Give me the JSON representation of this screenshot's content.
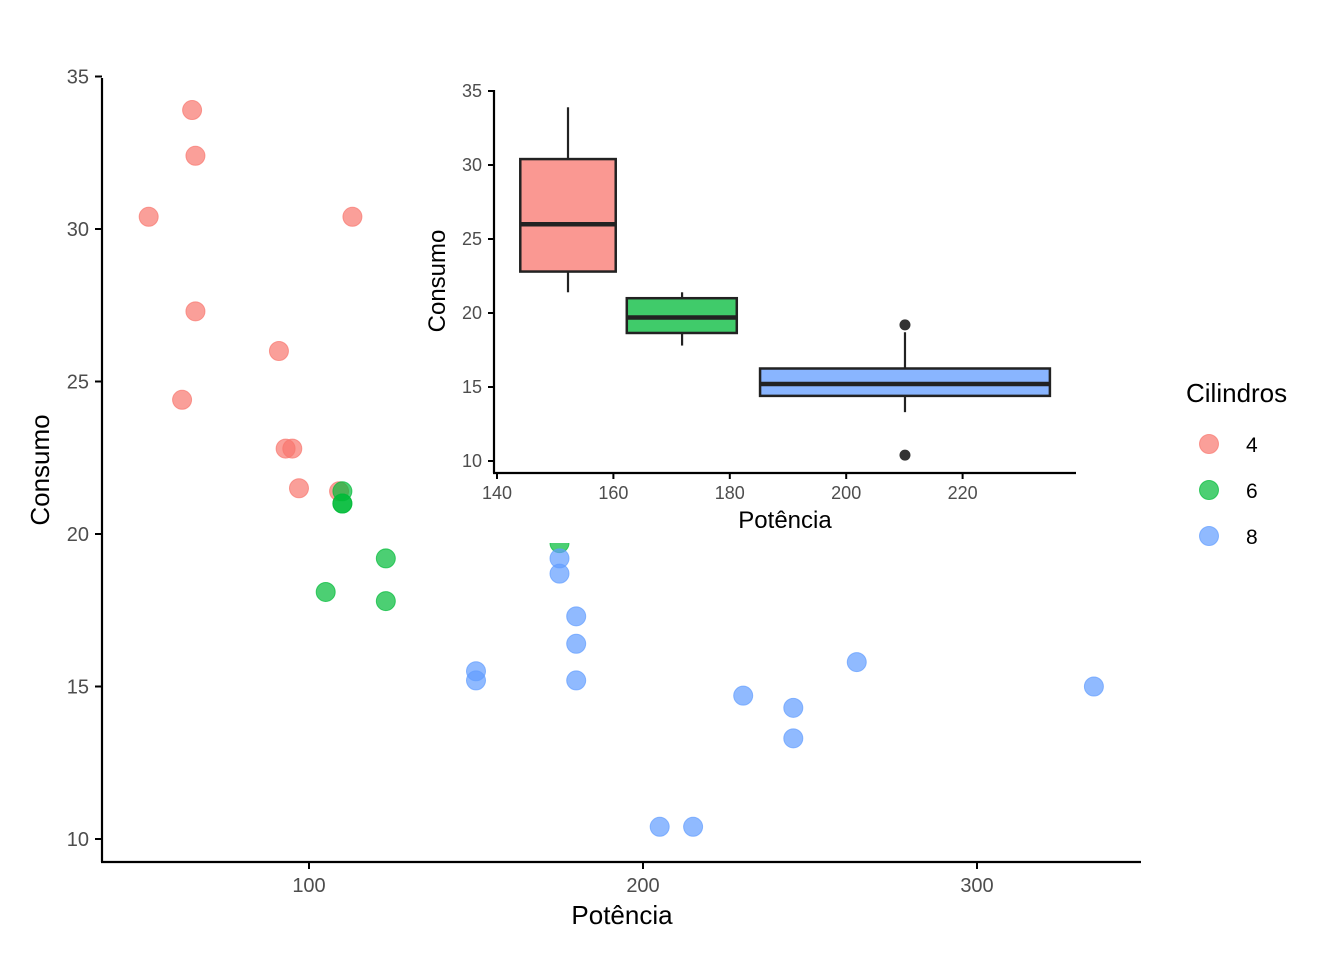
{
  "chart_data": [
    {
      "type": "scatter",
      "title": "",
      "xlabel": "Potência",
      "ylabel": "Consumo",
      "xlim": [
        38,
        349
      ],
      "ylim": [
        9.25,
        35
      ],
      "x_ticks": [
        100,
        200,
        300
      ],
      "y_ticks": [
        10,
        15,
        20,
        25,
        30,
        35
      ],
      "grid": false,
      "legend": {
        "title": "Cilindros",
        "placement": "right",
        "entries": [
          {
            "label": "4",
            "color": "#F8766D"
          },
          {
            "label": "6",
            "color": "#00BA38"
          },
          {
            "label": "8",
            "color": "#619CFF"
          }
        ]
      },
      "series": [
        {
          "name": "4",
          "color": "#F8766D",
          "points": [
            {
              "x": 93,
              "y": 22.8
            },
            {
              "x": 62,
              "y": 24.4
            },
            {
              "x": 95,
              "y": 22.8
            },
            {
              "x": 66,
              "y": 32.4
            },
            {
              "x": 52,
              "y": 30.4
            },
            {
              "x": 65,
              "y": 33.9
            },
            {
              "x": 97,
              "y": 21.5
            },
            {
              "x": 66,
              "y": 27.3
            },
            {
              "x": 91,
              "y": 26.0
            },
            {
              "x": 113,
              "y": 30.4
            },
            {
              "x": 109,
              "y": 21.4
            }
          ]
        },
        {
          "name": "6",
          "color": "#00BA38",
          "points": [
            {
              "x": 110,
              "y": 21.0
            },
            {
              "x": 110,
              "y": 21.0
            },
            {
              "x": 110,
              "y": 21.4
            },
            {
              "x": 105,
              "y": 18.1
            },
            {
              "x": 123,
              "y": 19.2
            },
            {
              "x": 123,
              "y": 17.8
            },
            {
              "x": 175,
              "y": 19.7
            }
          ]
        },
        {
          "name": "8",
          "color": "#619CFF",
          "points": [
            {
              "x": 175,
              "y": 18.7
            },
            {
              "x": 245,
              "y": 14.3
            },
            {
              "x": 180,
              "y": 16.4
            },
            {
              "x": 180,
              "y": 17.3
            },
            {
              "x": 180,
              "y": 15.2
            },
            {
              "x": 205,
              "y": 10.4
            },
            {
              "x": 215,
              "y": 10.4
            },
            {
              "x": 230,
              "y": 14.7
            },
            {
              "x": 150,
              "y": 15.5
            },
            {
              "x": 150,
              "y": 15.2
            },
            {
              "x": 245,
              "y": 13.3
            },
            {
              "x": 175,
              "y": 19.2
            },
            {
              "x": 264,
              "y": 15.8
            },
            {
              "x": 335,
              "y": 15.0
            }
          ]
        }
      ]
    },
    {
      "type": "box",
      "title": "",
      "xlabel": "Potência",
      "ylabel": "Consumo",
      "xlim": [
        139.5,
        240
      ],
      "ylim": [
        9.2,
        35
      ],
      "x_ticks": [
        140,
        160,
        180,
        200,
        220
      ],
      "y_ticks": [
        10,
        15,
        20,
        25,
        30,
        35
      ],
      "grid": false,
      "boxes": [
        {
          "group": "4",
          "color": "#F8766D",
          "x_center": 152.2,
          "x_left": 144,
          "x_right": 160.4,
          "whisker_low": 21.4,
          "q1": 22.8,
          "median": 26.0,
          "q3": 30.4,
          "whisker_high": 33.9,
          "outliers": []
        },
        {
          "group": "6",
          "color": "#00BA38",
          "x_center": 171.8,
          "x_left": 162.3,
          "x_right": 181.2,
          "whisker_low": 17.8,
          "q1": 18.65,
          "median": 19.7,
          "q3": 21.0,
          "whisker_high": 21.4,
          "outliers": []
        },
        {
          "group": "8",
          "color": "#619CFF",
          "x_center": 210.1,
          "x_left": 185.2,
          "x_right": 235.0,
          "whisker_low": 13.3,
          "q1": 14.4,
          "median": 15.2,
          "q3": 16.25,
          "whisker_high": 18.7,
          "outliers": [
            10.4,
            19.2
          ]
        }
      ]
    }
  ]
}
